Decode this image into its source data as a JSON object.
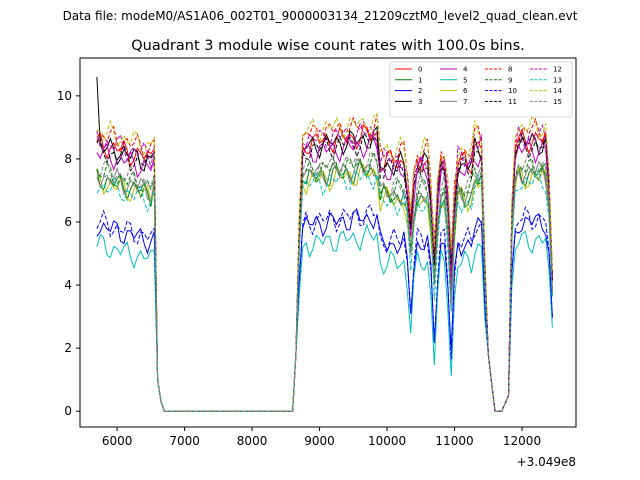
{
  "chart_data": {
    "type": "line",
    "suptitle": "Data file: modeM0/AS1A06_002T01_9000003134_21209cztM0_level2_quad_clean.evt",
    "title": "Quadrant 3 module wise count rates with 100.0s bins.",
    "xlabel": "",
    "ylabel": "",
    "x_offset_label": "+3.049e8",
    "xlim": [
      5450,
      12800
    ],
    "ylim": [
      -0.5,
      11.2
    ],
    "x_ticks": [
      6000,
      7000,
      8000,
      9000,
      10000,
      11000,
      12000
    ],
    "x_tick_labels": [
      "6000",
      "7000",
      "8000",
      "9000",
      "10000",
      "11000",
      "12000"
    ],
    "y_ticks": [
      0,
      2,
      4,
      6,
      8,
      10
    ],
    "y_tick_labels": [
      "0",
      "2",
      "4",
      "6",
      "8",
      "10"
    ],
    "legend_position": "top-right",
    "segments": [
      {
        "t0": 5700,
        "t1": 6600,
        "fall": [
          1.0,
          0.0
        ]
      },
      {
        "t0": 8600,
        "t1": 9800,
        "rise": [
          0.1,
          0.3
        ]
      },
      {
        "t0": 9900,
        "t1": 11400,
        "pattern": "dips"
      },
      {
        "t0": 11500,
        "t1": 11800,
        "drop": [
          2.0,
          0.0
        ]
      },
      {
        "t0": 11900,
        "t1": 12450
      }
    ],
    "series": [
      {
        "name": "0",
        "color": "#ff0000",
        "dash": "solid",
        "base": 8.5
      },
      {
        "name": "1",
        "color": "#008000",
        "dash": "solid",
        "base": 7.4
      },
      {
        "name": "2",
        "color": "#0000ff",
        "dash": "solid",
        "base": 5.9
      },
      {
        "name": "3",
        "color": "#000000",
        "dash": "solid",
        "base": 8.4
      },
      {
        "name": "4",
        "color": "#bf00bf",
        "dash": "solid",
        "base": 8.2
      },
      {
        "name": "5",
        "color": "#00bfbf",
        "dash": "solid",
        "base": 5.3
      },
      {
        "name": "6",
        "color": "#bfbf00",
        "dash": "solid",
        "base": 7.3
      },
      {
        "name": "7",
        "color": "#808080",
        "dash": "solid",
        "base": 7.5
      },
      {
        "name": "8",
        "color": "#ff0000",
        "dash": "dashed",
        "base": 8.8
      },
      {
        "name": "9",
        "color": "#008000",
        "dash": "dashed",
        "base": 7.6
      },
      {
        "name": "10",
        "color": "#0000ff",
        "dash": "dashed",
        "base": 6.0
      },
      {
        "name": "11",
        "color": "#000000",
        "dash": "dashed",
        "base": 8.3
      },
      {
        "name": "12",
        "color": "#bf00bf",
        "dash": "dashed",
        "base": 8.6
      },
      {
        "name": "13",
        "color": "#00bfbf",
        "dash": "dashed",
        "base": 7.2
      },
      {
        "name": "14",
        "color": "#bfbf00",
        "dash": "dashed",
        "base": 8.9
      },
      {
        "name": "15",
        "color": "#808080",
        "dash": "dashed",
        "base": 7.7
      }
    ]
  }
}
